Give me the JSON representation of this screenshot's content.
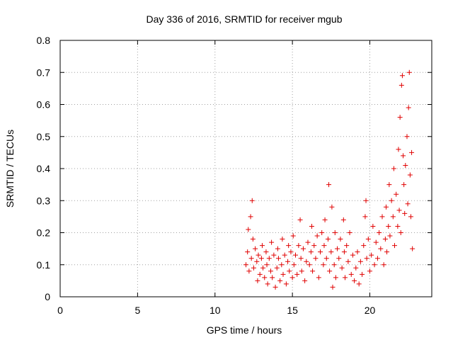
{
  "chart_data": {
    "type": "scatter",
    "title": "Day 336 of 2016, SRMTID for receiver mgub",
    "xlabel": "GPS time / hours",
    "ylabel": "SRMTID / TECUs",
    "xlim": [
      0,
      24
    ],
    "ylim": [
      0,
      0.8
    ],
    "x_ticks": [
      0,
      5,
      10,
      15,
      20
    ],
    "x_tick_labels": [
      "0",
      "5",
      "10",
      "15",
      "20"
    ],
    "y_ticks": [
      0,
      0.1,
      0.2,
      0.3,
      0.4,
      0.5,
      0.6,
      0.7,
      0.8
    ],
    "y_tick_labels": [
      "0",
      "0.1",
      "0.2",
      "0.3",
      "0.4",
      "0.5",
      "0.6",
      "0.7",
      "0.8"
    ],
    "grid": true,
    "marker": "plus",
    "series_color": "#e00000",
    "series": [
      {
        "name": "SRMTID",
        "points": [
          [
            12.0,
            0.1
          ],
          [
            12.1,
            0.14
          ],
          [
            12.15,
            0.21
          ],
          [
            12.2,
            0.08
          ],
          [
            12.3,
            0.25
          ],
          [
            12.35,
            0.12
          ],
          [
            12.4,
            0.3
          ],
          [
            12.45,
            0.18
          ],
          [
            12.5,
            0.09
          ],
          [
            12.6,
            0.15
          ],
          [
            12.7,
            0.11
          ],
          [
            12.75,
            0.05
          ],
          [
            12.8,
            0.13
          ],
          [
            12.9,
            0.07
          ],
          [
            13.0,
            0.12
          ],
          [
            13.05,
            0.16
          ],
          [
            13.1,
            0.09
          ],
          [
            13.2,
            0.06
          ],
          [
            13.3,
            0.14
          ],
          [
            13.35,
            0.1
          ],
          [
            13.4,
            0.04
          ],
          [
            13.5,
            0.12
          ],
          [
            13.6,
            0.08
          ],
          [
            13.65,
            0.17
          ],
          [
            13.7,
            0.06
          ],
          [
            13.8,
            0.13
          ],
          [
            13.9,
            0.03
          ],
          [
            14.0,
            0.09
          ],
          [
            14.05,
            0.15
          ],
          [
            14.1,
            0.12
          ],
          [
            14.2,
            0.05
          ],
          [
            14.3,
            0.1
          ],
          [
            14.35,
            0.18
          ],
          [
            14.4,
            0.07
          ],
          [
            14.5,
            0.13
          ],
          [
            14.6,
            0.04
          ],
          [
            14.7,
            0.11
          ],
          [
            14.75,
            0.16
          ],
          [
            14.8,
            0.08
          ],
          [
            14.9,
            0.14
          ],
          [
            15.0,
            0.06
          ],
          [
            15.05,
            0.19
          ],
          [
            15.1,
            0.1
          ],
          [
            15.2,
            0.13
          ],
          [
            15.3,
            0.07
          ],
          [
            15.4,
            0.16
          ],
          [
            15.5,
            0.24
          ],
          [
            15.55,
            0.12
          ],
          [
            15.6,
            0.08
          ],
          [
            15.7,
            0.15
          ],
          [
            15.8,
            0.05
          ],
          [
            15.9,
            0.11
          ],
          [
            16.0,
            0.17
          ],
          [
            16.1,
            0.1
          ],
          [
            16.2,
            0.14
          ],
          [
            16.25,
            0.22
          ],
          [
            16.3,
            0.08
          ],
          [
            16.4,
            0.16
          ],
          [
            16.5,
            0.12
          ],
          [
            16.6,
            0.19
          ],
          [
            16.7,
            0.06
          ],
          [
            16.8,
            0.14
          ],
          [
            16.9,
            0.2
          ],
          [
            17.0,
            0.1
          ],
          [
            17.05,
            0.16
          ],
          [
            17.1,
            0.24
          ],
          [
            17.2,
            0.12
          ],
          [
            17.3,
            0.18
          ],
          [
            17.35,
            0.35
          ],
          [
            17.4,
            0.08
          ],
          [
            17.5,
            0.14
          ],
          [
            17.55,
            0.28
          ],
          [
            17.6,
            0.03
          ],
          [
            17.7,
            0.1
          ],
          [
            17.75,
            0.2
          ],
          [
            17.8,
            0.06
          ],
          [
            17.9,
            0.15
          ],
          [
            18.0,
            0.12
          ],
          [
            18.1,
            0.18
          ],
          [
            18.2,
            0.09
          ],
          [
            18.3,
            0.24
          ],
          [
            18.35,
            0.14
          ],
          [
            18.4,
            0.06
          ],
          [
            18.5,
            0.16
          ],
          [
            18.6,
            0.11
          ],
          [
            18.7,
            0.2
          ],
          [
            18.8,
            0.07
          ],
          [
            18.9,
            0.13
          ],
          [
            19.0,
            0.05
          ],
          [
            19.1,
            0.09
          ],
          [
            19.2,
            0.14
          ],
          [
            19.3,
            0.04
          ],
          [
            19.4,
            0.11
          ],
          [
            19.5,
            0.07
          ],
          [
            19.6,
            0.16
          ],
          [
            19.7,
            0.25
          ],
          [
            19.75,
            0.3
          ],
          [
            19.8,
            0.12
          ],
          [
            19.9,
            0.18
          ],
          [
            20.0,
            0.08
          ],
          [
            20.1,
            0.13
          ],
          [
            20.2,
            0.22
          ],
          [
            20.3,
            0.1
          ],
          [
            20.4,
            0.17
          ],
          [
            20.5,
            0.12
          ],
          [
            20.6,
            0.2
          ],
          [
            20.7,
            0.15
          ],
          [
            20.8,
            0.25
          ],
          [
            20.9,
            0.1
          ],
          [
            21.0,
            0.18
          ],
          [
            21.05,
            0.28
          ],
          [
            21.1,
            0.14
          ],
          [
            21.2,
            0.22
          ],
          [
            21.25,
            0.35
          ],
          [
            21.3,
            0.19
          ],
          [
            21.4,
            0.3
          ],
          [
            21.5,
            0.25
          ],
          [
            21.55,
            0.4
          ],
          [
            21.6,
            0.16
          ],
          [
            21.7,
            0.32
          ],
          [
            21.8,
            0.22
          ],
          [
            21.85,
            0.46
          ],
          [
            21.9,
            0.27
          ],
          [
            21.95,
            0.56
          ],
          [
            22.0,
            0.2
          ],
          [
            22.05,
            0.66
          ],
          [
            22.1,
            0.69
          ],
          [
            22.15,
            0.44
          ],
          [
            22.2,
            0.35
          ],
          [
            22.25,
            0.26
          ],
          [
            22.3,
            0.41
          ],
          [
            22.4,
            0.5
          ],
          [
            22.45,
            0.29
          ],
          [
            22.5,
            0.59
          ],
          [
            22.55,
            0.7
          ],
          [
            22.6,
            0.38
          ],
          [
            22.65,
            0.25
          ],
          [
            22.7,
            0.45
          ],
          [
            22.75,
            0.15
          ]
        ]
      }
    ]
  }
}
